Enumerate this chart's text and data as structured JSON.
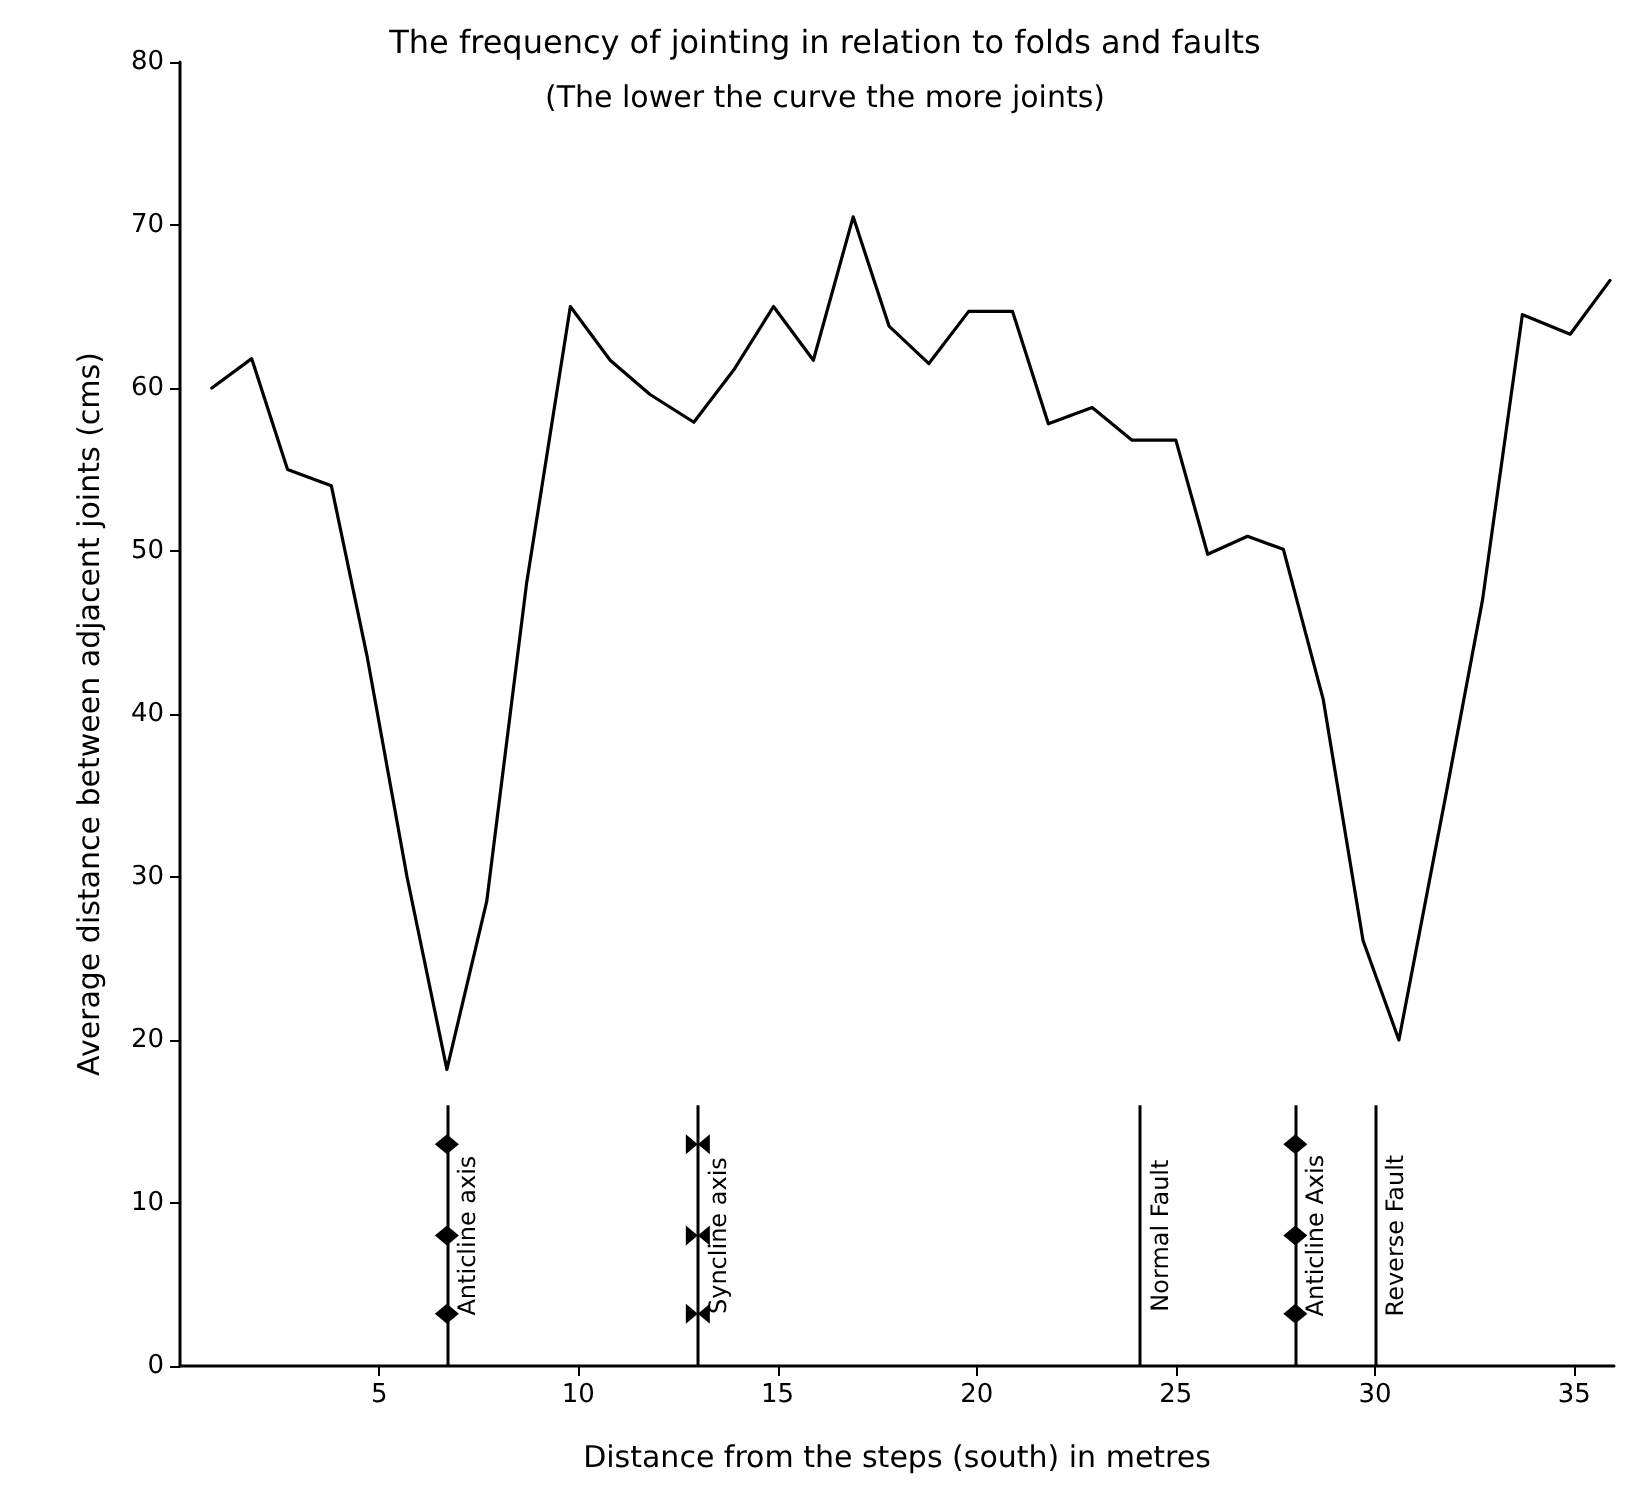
{
  "chart_data": {
    "type": "line",
    "title": "The frequency of jointing in relation to folds and faults",
    "subtitle": "(The lower the curve the more joints)",
    "xlabel": "Distance from the steps (south) in metres",
    "ylabel": "Average distance between adjacent joints (cms)",
    "x": [
      0.8,
      1.8,
      2.7,
      3.8,
      4.7,
      5.7,
      6.7,
      7.7,
      8.7,
      9.8,
      10.8,
      11.8,
      12.9,
      13.9,
      14.9,
      15.9,
      16.9,
      17.8,
      18.8,
      19.8,
      20.9,
      21.8,
      22.9,
      23.9,
      25.0,
      25.8,
      26.8,
      27.7,
      28.7,
      29.7,
      30.6,
      31.8,
      32.7,
      33.7,
      34.9,
      35.9
    ],
    "series": [
      {
        "color": "#000000",
        "values": [
          60,
          61.8,
          55,
          54,
          43.5,
          30,
          18.2,
          28.5,
          48,
          65,
          61.7,
          59.6,
          57.9,
          61.1,
          65,
          61.7,
          70.5,
          63.8,
          61.5,
          64.7,
          64.7,
          57.8,
          58.8,
          56.8,
          56.8,
          49.8,
          50.9,
          50.1,
          40.9,
          26.1,
          20,
          35.3,
          47,
          64.5,
          63.3,
          66.6
        ]
      }
    ],
    "xlim": [
      0,
      36
    ],
    "xticks": [
      5,
      10,
      15,
      20,
      25,
      30,
      35
    ],
    "ylim": [
      0,
      80
    ],
    "yticks": [
      0,
      10,
      20,
      30,
      40,
      50,
      60,
      70,
      80
    ],
    "ref_lines": [
      {
        "axis": "x",
        "value": 6.7,
        "label": "Anticline axis",
        "color": "#000000"
      },
      {
        "axis": "x",
        "value": 13.0,
        "label": "Syncline axis",
        "color": "#000000"
      },
      {
        "axis": "x",
        "value": 24.1,
        "label": "Normal Fault",
        "color": "#000000"
      },
      {
        "axis": "x",
        "value": 28.0,
        "label": "Anticline Axis",
        "color": "#000000"
      },
      {
        "axis": "x",
        "value": 30.0,
        "label": "Reverse Fault",
        "color": "#000000"
      }
    ],
    "grid": false,
    "marker": "none",
    "line_style": "solid"
  }
}
